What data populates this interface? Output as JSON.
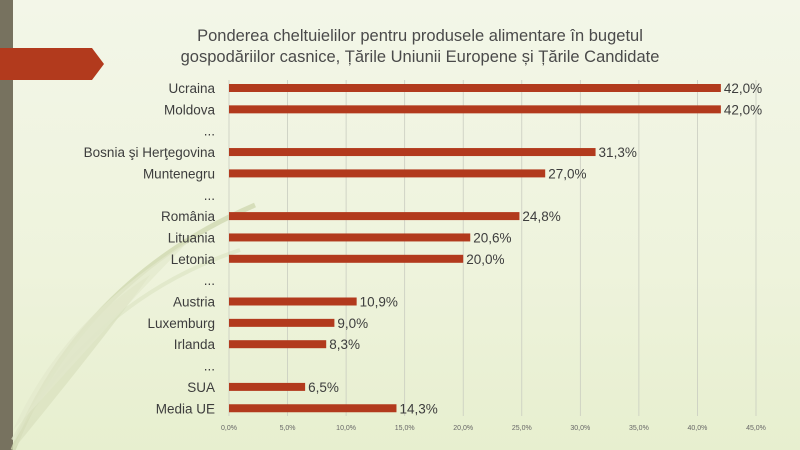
{
  "slide": {
    "title": "Ponderea cheltuielilor  pentru produsele alimentare în bugetul gospodăriilor casnice, Țările Uniunii Europene și Țările Candidate",
    "accent_color": "#b23a1d",
    "sidebar_color": "#77725f"
  },
  "chart_data": {
    "type": "bar",
    "orientation": "horizontal",
    "title": "Ponderea cheltuielilor  pentru produsele alimentare în bugetul gospodăriilor casnice, Țările Uniunii Europene și Țările Candidate",
    "categories": [
      "Ucraina",
      "Moldova",
      "...",
      "Bosnia şi Herţegovina",
      "Muntenegru",
      "...",
      "România",
      "Lituania",
      "Letonia",
      "...",
      "Austria",
      "Luxemburg",
      "Irlanda",
      "...",
      "SUA",
      "Media UE"
    ],
    "values": [
      42.0,
      42.0,
      null,
      31.3,
      27.0,
      null,
      24.8,
      20.6,
      20.0,
      null,
      10.9,
      9.0,
      8.3,
      null,
      6.5,
      14.3
    ],
    "value_labels": [
      "42,0%",
      "42,0%",
      "",
      "31,3%",
      "27,0%",
      "",
      "24,8%",
      "20,6%",
      "20,0%",
      "",
      "10,9%",
      "9,0%",
      "8,3%",
      "",
      "6,5%",
      "14,3%"
    ],
    "x_ticks": [
      "0,0%",
      "5,0%",
      "10,0%",
      "15,0%",
      "20,0%",
      "25,0%",
      "30,0%",
      "35,0%",
      "40,0%",
      "45,0%"
    ],
    "xlim": [
      0,
      45
    ],
    "xlabel": "",
    "ylabel": "",
    "grid": "vertical",
    "bar_color": "#b23a1d",
    "grid_color": "#c9ccc0"
  }
}
